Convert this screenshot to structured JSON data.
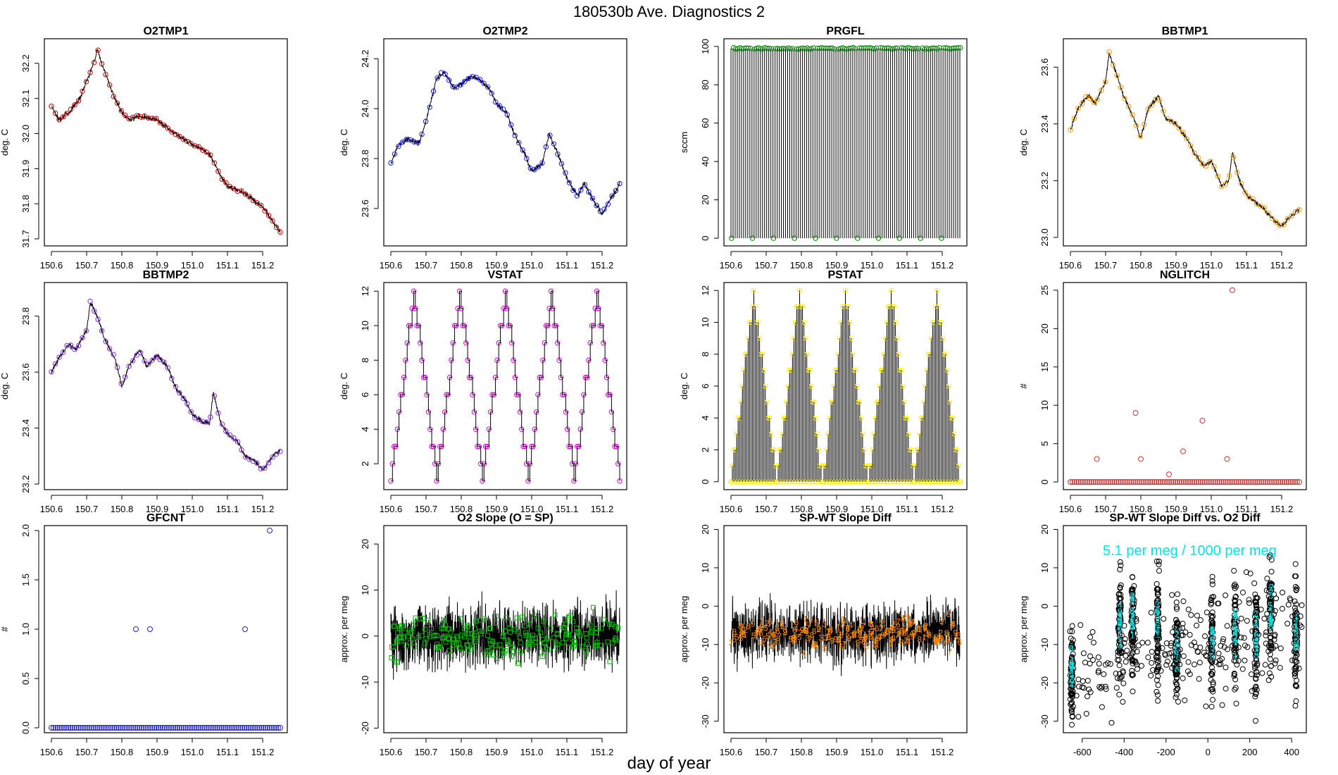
{
  "figure": {
    "title": "180530b   Ave. Diagnostics 2",
    "common_xlabel": "day of year"
  },
  "chart_data": [
    {
      "id": "o2tmp1",
      "type": "line",
      "title": "O2TMP1",
      "ylabel": "deg. C",
      "marker": "circle",
      "marker_color": "#cc0000",
      "xlim": [
        150.58,
        151.27
      ],
      "ylim": [
        31.68,
        32.27
      ],
      "xticks": [
        "150.6",
        "150.7",
        "150.8",
        "150.9",
        "151.0",
        "151.1",
        "151.2"
      ],
      "yticks": [
        "31.7",
        "31.8",
        "31.9",
        "32.0",
        "32.1",
        "32.2"
      ],
      "x": [
        150.6,
        150.62,
        150.65,
        150.68,
        150.7,
        150.72,
        150.73,
        150.75,
        150.78,
        150.8,
        150.82,
        150.85,
        150.9,
        150.95,
        151.0,
        151.02,
        151.05,
        151.08,
        151.1,
        151.15,
        151.2,
        151.25
      ],
      "values": [
        32.08,
        32.04,
        32.06,
        32.1,
        32.15,
        32.2,
        32.24,
        32.18,
        32.1,
        32.06,
        32.04,
        32.05,
        32.04,
        32.0,
        31.97,
        31.96,
        31.94,
        31.88,
        31.85,
        31.83,
        31.79,
        31.72
      ]
    },
    {
      "id": "o2tmp2",
      "type": "line",
      "title": "O2TMP2",
      "ylabel": "deg. C",
      "marker": "circle",
      "marker_color": "#1a1aff",
      "xlim": [
        150.58,
        151.27
      ],
      "ylim": [
        23.45,
        24.28
      ],
      "xticks": [
        "150.6",
        "150.7",
        "150.8",
        "150.9",
        "151.0",
        "151.1",
        "151.2"
      ],
      "yticks": [
        "23.6",
        "23.8",
        "24.0",
        "24.2"
      ],
      "x": [
        150.6,
        150.62,
        150.65,
        150.68,
        150.7,
        150.73,
        150.75,
        150.78,
        150.8,
        150.83,
        150.85,
        150.88,
        150.9,
        150.93,
        150.95,
        150.98,
        151.0,
        151.03,
        151.05,
        151.08,
        151.1,
        151.13,
        151.15,
        151.18,
        151.2,
        151.23,
        151.25
      ],
      "values": [
        23.78,
        23.85,
        23.88,
        23.86,
        23.95,
        24.12,
        24.15,
        24.08,
        24.1,
        24.13,
        24.12,
        24.08,
        24.02,
        23.98,
        23.9,
        23.82,
        23.75,
        23.78,
        23.9,
        23.8,
        23.72,
        23.65,
        23.7,
        23.62,
        23.58,
        23.65,
        23.7
      ]
    },
    {
      "id": "prgfl",
      "type": "spike",
      "title": "PRGFL",
      "ylabel": "sccm",
      "marker": "circle",
      "marker_color": "#008800",
      "xlim": [
        150.58,
        151.27
      ],
      "ylim": [
        -4,
        104
      ],
      "xticks": [
        "150.6",
        "150.7",
        "150.8",
        "150.9",
        "151.0",
        "151.1",
        "151.2"
      ],
      "yticks": [
        "0",
        "20",
        "40",
        "60",
        "80",
        "100"
      ],
      "x_start": 150.6,
      "x_end": 151.25,
      "spike_count": 110,
      "spike_value": 99,
      "base_value": 0
    },
    {
      "id": "bbtmp1",
      "type": "line",
      "title": "BBTMP1",
      "ylabel": "deg. C",
      "marker": "circle",
      "marker_color": "#ff9900",
      "xlim": [
        150.58,
        151.27
      ],
      "ylim": [
        22.97,
        23.7
      ],
      "xticks": [
        "150.6",
        "150.7",
        "150.8",
        "150.9",
        "151.0",
        "151.1",
        "151.2"
      ],
      "yticks": [
        "23.0",
        "23.2",
        "23.4",
        "23.6"
      ],
      "x": [
        150.6,
        150.62,
        150.65,
        150.67,
        150.7,
        150.71,
        150.73,
        150.75,
        150.78,
        150.8,
        150.82,
        150.85,
        150.87,
        150.9,
        150.93,
        150.95,
        150.98,
        151.0,
        151.03,
        151.05,
        151.06,
        151.08,
        151.1,
        151.13,
        151.15,
        151.18,
        151.2,
        151.23,
        151.25
      ],
      "values": [
        23.38,
        23.45,
        23.5,
        23.47,
        23.55,
        23.65,
        23.58,
        23.5,
        23.42,
        23.35,
        23.45,
        23.5,
        23.42,
        23.4,
        23.35,
        23.3,
        23.25,
        23.27,
        23.18,
        23.2,
        23.3,
        23.2,
        23.15,
        23.12,
        23.1,
        23.06,
        23.04,
        23.08,
        23.1
      ]
    },
    {
      "id": "bbtmp2",
      "type": "line",
      "title": "BBTMP2",
      "ylabel": "deg. C",
      "marker": "circle",
      "marker_color": "#8a2be2",
      "xlim": [
        150.58,
        151.27
      ],
      "ylim": [
        23.18,
        23.92
      ],
      "xticks": [
        "150.6",
        "150.7",
        "150.8",
        "150.9",
        "151.0",
        "151.1",
        "151.2"
      ],
      "yticks": [
        "23.2",
        "23.4",
        "23.6",
        "23.8"
      ],
      "x": [
        150.6,
        150.62,
        150.65,
        150.67,
        150.7,
        150.71,
        150.73,
        150.75,
        150.78,
        150.8,
        150.82,
        150.85,
        150.87,
        150.9,
        150.93,
        150.95,
        150.98,
        151.0,
        151.03,
        151.05,
        151.06,
        151.08,
        151.1,
        151.13,
        151.15,
        151.18,
        151.2,
        151.23,
        151.25
      ],
      "values": [
        23.6,
        23.65,
        23.7,
        23.68,
        23.75,
        23.85,
        23.8,
        23.72,
        23.65,
        23.55,
        23.62,
        23.68,
        23.62,
        23.66,
        23.62,
        23.55,
        23.5,
        23.45,
        23.42,
        23.42,
        23.53,
        23.42,
        23.38,
        23.35,
        23.3,
        23.28,
        23.25,
        23.3,
        23.32
      ]
    },
    {
      "id": "vstat",
      "type": "step",
      "title": "VSTAT",
      "ylabel": "deg. C",
      "marker": "circle",
      "marker_color": "#dd00dd",
      "xlim": [
        150.58,
        151.27
      ],
      "ylim": [
        0.5,
        12.5
      ],
      "xticks": [
        "150.6",
        "150.7",
        "150.8",
        "150.9",
        "151.0",
        "151.1",
        "151.2"
      ],
      "yticks": [
        "2",
        "4",
        "6",
        "8",
        "10",
        "12"
      ],
      "x_start": 150.6,
      "x_end": 151.25,
      "cycles": 5,
      "min_value": 1,
      "max_value": 12
    },
    {
      "id": "pstat",
      "type": "spike-step",
      "title": "PSTAT",
      "ylabel": "deg. C",
      "marker": "circle",
      "marker_color": "#ffee00",
      "xlim": [
        150.58,
        151.27
      ],
      "ylim": [
        -0.5,
        12.5
      ],
      "xticks": [
        "150.6",
        "150.7",
        "150.8",
        "150.9",
        "151.0",
        "151.1",
        "151.2"
      ],
      "yticks": [
        "0",
        "2",
        "4",
        "6",
        "8",
        "10",
        "12"
      ],
      "x_start": 150.6,
      "x_end": 151.25,
      "cycles": 5,
      "min_value": 0,
      "max_value": 12
    },
    {
      "id": "nglitch",
      "type": "scatter",
      "title": "NGLITCH",
      "ylabel": "#",
      "marker": "circle",
      "marker_color": "#cc3333",
      "xlim": [
        150.58,
        151.27
      ],
      "ylim": [
        -1,
        26
      ],
      "xticks": [
        "150.6",
        "150.7",
        "150.8",
        "150.9",
        "151.0",
        "151.1",
        "151.2"
      ],
      "yticks": [
        "0",
        "5",
        "10",
        "15",
        "20",
        "25"
      ],
      "x_start": 150.6,
      "x_end": 151.25,
      "point_count": 110,
      "base_value": 0,
      "x": [
        150.675,
        150.785,
        150.8,
        150.88,
        150.92,
        150.975,
        151.045,
        151.06
      ],
      "values": [
        3,
        9,
        3,
        1,
        4,
        8,
        3,
        25
      ]
    },
    {
      "id": "gfcnt",
      "type": "scatter",
      "title": "GFCNT",
      "ylabel": "#",
      "marker": "circle",
      "marker_color": "#2222cc",
      "xlim": [
        150.58,
        151.27
      ],
      "ylim": [
        -0.05,
        2.05
      ],
      "xticks": [
        "150.6",
        "150.7",
        "150.8",
        "150.9",
        "151.0",
        "151.1",
        "151.2"
      ],
      "yticks": [
        "0.0",
        "0.5",
        "1.0",
        "1.5",
        "2.0"
      ],
      "x_start": 150.6,
      "x_end": 151.25,
      "point_count": 110,
      "base_value": 0,
      "x": [
        150.84,
        150.88,
        151.15,
        151.22
      ],
      "values": [
        1,
        1,
        1,
        2
      ]
    },
    {
      "id": "o2slope",
      "type": "noise",
      "title": "O2 Slope (O = SP)",
      "ylabel": "approx. per meg",
      "marker": "square",
      "marker_color": "#00bb00",
      "xlim": [
        150.58,
        151.27
      ],
      "ylim": [
        -21,
        24
      ],
      "xticks": [
        "150.6",
        "150.7",
        "150.8",
        "150.9",
        "151.0",
        "151.1",
        "151.2"
      ],
      "yticks": [
        "-20",
        "-10",
        "0",
        "10",
        "20"
      ],
      "x_start": 150.6,
      "x_end": 151.25,
      "center": 0,
      "spread": 7,
      "marker_spread": 5
    },
    {
      "id": "spwt",
      "type": "noise",
      "title": "SP-WT Slope Diff",
      "ylabel": "approx. per meg",
      "marker": "glyph",
      "marker_color": "#ff8800",
      "xlim": [
        150.58,
        151.27
      ],
      "ylim": [
        -33,
        21
      ],
      "xticks": [
        "150.6",
        "150.7",
        "150.8",
        "150.9",
        "151.0",
        "151.1",
        "151.2"
      ],
      "yticks": [
        "-30",
        "-20",
        "-10",
        "0",
        "10",
        "20"
      ],
      "x_start": 150.6,
      "x_end": 151.25,
      "center": -7,
      "spread": 8,
      "marker_spread": 4
    },
    {
      "id": "spwt_vs_o2",
      "type": "scatter",
      "title": "SP-WT Slope Diff vs. O2 Diff",
      "ylabel": "approx. per meg",
      "marker": "circle",
      "marker_color": "#000000",
      "annotation": "5.1 per meg / 1000 per meg",
      "annotation_color": "#00e5e5",
      "xlim": [
        -690,
        470
      ],
      "ylim": [
        -33,
        21
      ],
      "xticks": [
        "-600",
        "-400",
        "-200",
        "0",
        "200",
        "400"
      ],
      "yticks": [
        "-30",
        "-20",
        "-10",
        "0",
        "10",
        "20"
      ],
      "clusters_x": [
        -650,
        -420,
        -360,
        -240,
        -150,
        20,
        130,
        230,
        300,
        420
      ],
      "clusters_y": [
        -18,
        -5,
        -5,
        -6,
        -12,
        -10,
        -8,
        -9,
        -2,
        -8
      ]
    }
  ]
}
